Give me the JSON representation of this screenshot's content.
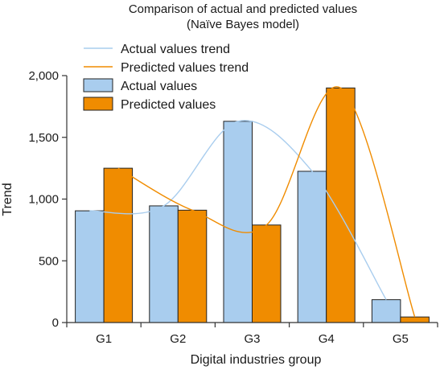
{
  "chart_data": {
    "type": "bar",
    "title": "Comparison of actual and predicted values",
    "subtitle": "(Naïve Bayes model)",
    "xlabel": "Digital industries group",
    "ylabel": "Trend",
    "categories": [
      "G1",
      "G2",
      "G3",
      "G4",
      "G5"
    ],
    "ylim": [
      0,
      2000
    ],
    "yticks": [
      0,
      500,
      1000,
      1500,
      2000
    ],
    "ytick_labels": [
      "0",
      "500",
      "1,000",
      "1,500",
      "2,000"
    ],
    "grid": false,
    "legend_position": "top-left",
    "series": [
      {
        "name": "Actual values",
        "values": [
          905,
          945,
          1630,
          1225,
          185
        ],
        "color": "#a9cdee",
        "kind": "bar"
      },
      {
        "name": "Predicted values",
        "values": [
          1250,
          910,
          790,
          1900,
          45
        ],
        "color": "#f08c00",
        "kind": "bar"
      }
    ],
    "trends": [
      {
        "name": "Actual values trend",
        "of": "Actual values",
        "color": "#a9cdee",
        "kind": "line"
      },
      {
        "name": "Predicted values trend",
        "of": "Predicted values",
        "color": "#f08c00",
        "kind": "line"
      }
    ],
    "legend": [
      "Actual values trend",
      "Predicted values trend",
      "Actual values",
      "Predicted values"
    ]
  }
}
